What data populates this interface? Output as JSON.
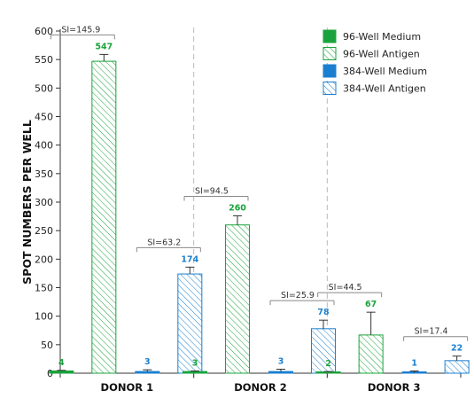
{
  "chart_data": {
    "type": "bar",
    "ylabel": "SPOT NUMBERS PER WELL",
    "ylim": [
      0,
      600
    ],
    "yticks": [
      "0",
      "50",
      "100",
      "150",
      "200",
      "250",
      "300",
      "350",
      "400",
      "450",
      "500",
      "550",
      "600"
    ],
    "categories": [
      "DONOR 1",
      "DONOR 2",
      "DONOR 3"
    ],
    "grid": false,
    "legend_position": "top-right",
    "colors": {
      "green": "#1aa33c",
      "blue": "#1a7fd0"
    },
    "series": [
      {
        "name": "96-Well Medium",
        "values": [
          4,
          3,
          2
        ],
        "labels": [
          "4",
          "3",
          "2"
        ],
        "errors": [
          1,
          1,
          1
        ],
        "color": "#1aa33c",
        "pattern": "solid"
      },
      {
        "name": "96-Well Antigen",
        "values": [
          547,
          260,
          67
        ],
        "labels": [
          "547",
          "260",
          "67"
        ],
        "errors": [
          12,
          16,
          40
        ],
        "color": "#1aa33c",
        "pattern": "hatched"
      },
      {
        "name": "384-Well Medium",
        "values": [
          3,
          3,
          1
        ],
        "labels": [
          "3",
          "3",
          "1"
        ],
        "errors": [
          3,
          4,
          3
        ],
        "color": "#1a7fd0",
        "pattern": "solid"
      },
      {
        "name": "384-Well Antigen",
        "values": [
          174,
          78,
          22
        ],
        "labels": [
          "174",
          "78",
          "22"
        ],
        "errors": [
          12,
          15,
          8
        ],
        "color": "#1a7fd0",
        "pattern": "hatched"
      }
    ],
    "annotations": [
      {
        "text": "SI=145.9",
        "group": 0,
        "pair": "96"
      },
      {
        "text": "SI=63.2",
        "group": 0,
        "pair": "384"
      },
      {
        "text": "SI=94.5",
        "group": 1,
        "pair": "96"
      },
      {
        "text": "SI=25.9",
        "group": 1,
        "pair": "384"
      },
      {
        "text": "SI=44.5",
        "group": 2,
        "pair": "96"
      },
      {
        "text": "SI=17.4",
        "group": 2,
        "pair": "384"
      }
    ]
  }
}
